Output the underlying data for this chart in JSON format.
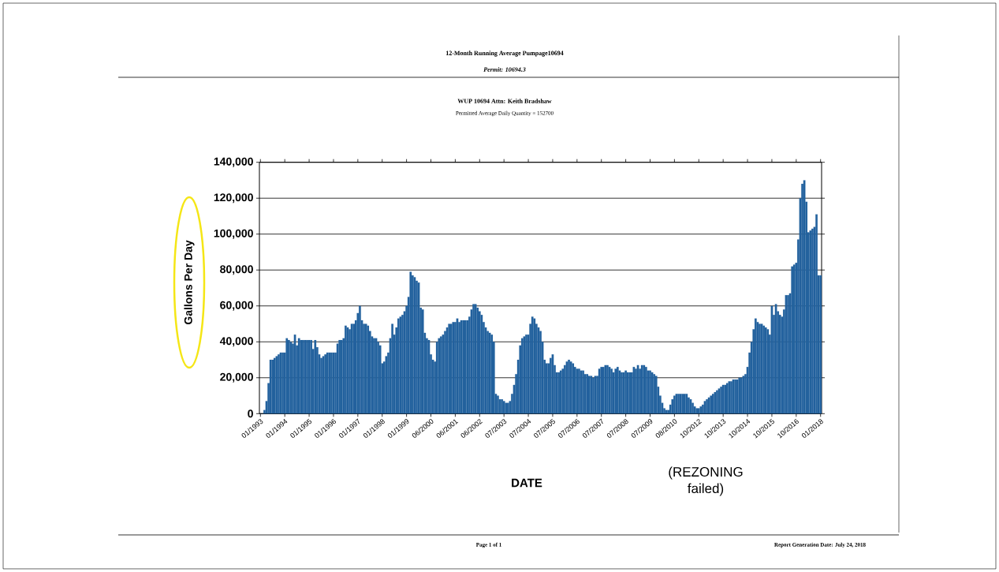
{
  "chart_data": {
    "type": "bar",
    "title": "12-Month Running Average Pumpage10694",
    "subtitle": "Permit: 10694.3",
    "xlabel": "DATE",
    "ylabel": "Gallons Per Day",
    "annotations": [
      "WUP 10694 Attn: Keith Bradshaw",
      "Permitted Average Daily Quantity =  152700",
      "(REZONING failed)",
      "Page 1 of 1",
      "Report Generation Date: July 24, 2018"
    ],
    "color": "#23629e",
    "grid": "y",
    "ylim": [
      0,
      140000
    ],
    "yticks": [
      0,
      {
        "value": 20000,
        "label": "20,000"
      },
      {
        "value": 40000,
        "label": "40,000"
      },
      {
        "value": 60000,
        "label": "60,000"
      },
      {
        "value": 80000,
        "label": "80,000"
      },
      {
        "value": 100000,
        "label": "100,000"
      },
      {
        "value": 120000,
        "label": "120,000"
      },
      {
        "value": 140000,
        "label": "140,000"
      }
    ],
    "categories": [
      "01/1993",
      null,
      null,
      null,
      null,
      null,
      null,
      null,
      null,
      null,
      null,
      null,
      "01/1994",
      null,
      null,
      null,
      null,
      null,
      null,
      null,
      null,
      null,
      null,
      null,
      "01/1995",
      null,
      null,
      null,
      null,
      null,
      null,
      null,
      null,
      null,
      null,
      null,
      "01/1996",
      null,
      null,
      null,
      null,
      null,
      null,
      null,
      null,
      null,
      null,
      null,
      "01/1997",
      null,
      null,
      null,
      null,
      null,
      null,
      null,
      null,
      null,
      null,
      null,
      "01/1998",
      null,
      null,
      null,
      null,
      null,
      null,
      null,
      null,
      null,
      null,
      null,
      "01/1999",
      null,
      null,
      null,
      null,
      null,
      null,
      null,
      null,
      null,
      null,
      null,
      "06/2000",
      null,
      null,
      null,
      null,
      null,
      null,
      null,
      null,
      null,
      null,
      null,
      "06/2001",
      null,
      null,
      null,
      null,
      null,
      null,
      null,
      null,
      null,
      null,
      null,
      "06/2002",
      null,
      null,
      null,
      null,
      null,
      null,
      null,
      null,
      null,
      null,
      null,
      "07/2003",
      null,
      null,
      null,
      null,
      null,
      null,
      null,
      null,
      null,
      null,
      null,
      "07/2004",
      null,
      null,
      null,
      null,
      null,
      null,
      null,
      null,
      null,
      null,
      null,
      "07/2005",
      null,
      null,
      null,
      null,
      null,
      null,
      null,
      null,
      null,
      null,
      null,
      "07/2006",
      null,
      null,
      null,
      null,
      null,
      null,
      null,
      null,
      null,
      null,
      null,
      "07/2007",
      null,
      null,
      null,
      null,
      null,
      null,
      null,
      null,
      null,
      null,
      null,
      "07/2008",
      null,
      null,
      null,
      null,
      null,
      null,
      null,
      null,
      null,
      null,
      null,
      "07/2009",
      null,
      null,
      null,
      null,
      null,
      null,
      null,
      null,
      null,
      null,
      null,
      "08/2010",
      null,
      null,
      null,
      null,
      null,
      null,
      null,
      null,
      null,
      null,
      null,
      "10/2012",
      null,
      null,
      null,
      null,
      null,
      null,
      null,
      null,
      null,
      null,
      null,
      "10/2013",
      null,
      null,
      null,
      null,
      null,
      null,
      null,
      null,
      null,
      null,
      null,
      "10/2014",
      null,
      null,
      null,
      null,
      null,
      null,
      null,
      null,
      null,
      null,
      null,
      "10/2015",
      null,
      null,
      null,
      null,
      null,
      null,
      null,
      null,
      null,
      null,
      null,
      "10/2016",
      null,
      null,
      null,
      null,
      null,
      null,
      null,
      null,
      null,
      null,
      null,
      "01/2018"
    ],
    "values": [
      0,
      0,
      2000,
      7000,
      17000,
      30000,
      30000,
      31000,
      32000,
      33000,
      34000,
      34000,
      34000,
      42000,
      41000,
      40000,
      39000,
      44000,
      38000,
      42000,
      41000,
      41000,
      41000,
      41000,
      41000,
      41000,
      36000,
      41000,
      37000,
      33000,
      31000,
      32000,
      33000,
      34000,
      34000,
      34000,
      34000,
      34000,
      39000,
      41000,
      41000,
      42000,
      49000,
      48000,
      47000,
      50000,
      50000,
      52000,
      56000,
      60000,
      52000,
      50000,
      50000,
      49000,
      46000,
      43000,
      42000,
      42000,
      40000,
      38000,
      28000,
      29000,
      32000,
      34000,
      42000,
      50000,
      44000,
      48000,
      53000,
      54000,
      55000,
      57000,
      60000,
      65000,
      79000,
      77000,
      76000,
      74000,
      73000,
      59000,
      58000,
      45000,
      42000,
      41000,
      33000,
      30000,
      29000,
      40000,
      42000,
      43000,
      44000,
      46000,
      48000,
      50000,
      50000,
      51000,
      51000,
      53000,
      51000,
      52000,
      52000,
      52000,
      52000,
      54000,
      58000,
      61000,
      61000,
      59000,
      57000,
      55000,
      51000,
      48000,
      46000,
      45000,
      44000,
      40000,
      11000,
      10000,
      8000,
      8000,
      7000,
      6000,
      6000,
      7000,
      11000,
      16000,
      22000,
      30000,
      38000,
      42000,
      43000,
      44000,
      44000,
      50000,
      54000,
      53000,
      50000,
      48000,
      46000,
      40000,
      30000,
      28000,
      28000,
      31000,
      33000,
      27000,
      23000,
      23000,
      24000,
      25000,
      27000,
      29000,
      30000,
      29000,
      28000,
      26000,
      25000,
      25000,
      24000,
      24000,
      22000,
      22000,
      21000,
      21000,
      20000,
      21000,
      21000,
      25000,
      26000,
      26000,
      27000,
      27000,
      26000,
      25000,
      23000,
      25000,
      26000,
      24000,
      23000,
      23000,
      24000,
      23000,
      23000,
      23000,
      26000,
      25000,
      27000,
      25000,
      27000,
      27000,
      26000,
      24000,
      24000,
      23000,
      22000,
      21000,
      15000,
      10000,
      6000,
      3000,
      2000,
      2000,
      5000,
      8000,
      10000,
      11000,
      11000,
      11000,
      11000,
      11000,
      11000,
      9000,
      8000,
      6000,
      4000,
      3000,
      3000,
      4000,
      5000,
      7000,
      8000,
      9000,
      10000,
      11000,
      12000,
      13000,
      14000,
      15000,
      16000,
      16000,
      17000,
      18000,
      18000,
      19000,
      19000,
      19000,
      20000,
      20000,
      21000,
      22000,
      26000,
      34000,
      40000,
      47000,
      53000,
      51000,
      50000,
      50000,
      49000,
      48000,
      47000,
      44000,
      60000,
      55000,
      61000,
      57000,
      55000,
      54000,
      58000,
      66000,
      66000,
      67000,
      82000,
      83000,
      84000,
      97000,
      120000,
      128000,
      130000,
      118000,
      101000,
      102000,
      103000,
      104000,
      111000,
      77000,
      77000
    ]
  }
}
